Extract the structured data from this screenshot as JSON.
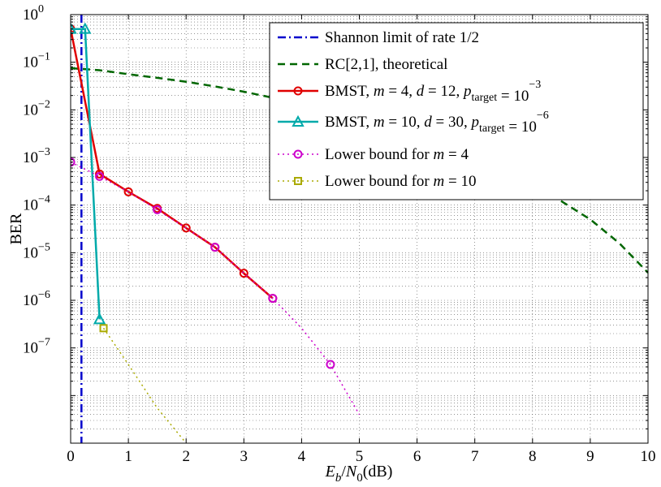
{
  "chart_data": {
    "type": "line",
    "title": "",
    "xlabel": "",
    "ylabel": "BER",
    "xlim": [
      0,
      10
    ],
    "ylim_log10": [
      -9,
      0
    ],
    "y_scale": "log",
    "grid": true,
    "legend_placement": "top-right",
    "x_ticks": [
      "0",
      "1",
      "2",
      "3",
      "4",
      "5",
      "6",
      "7",
      "8",
      "9",
      "10"
    ],
    "y_ticks": [
      {
        "base": "10",
        "exp": "0"
      },
      {
        "base": "10",
        "exp": "−1"
      },
      {
        "base": "10",
        "exp": "−2"
      },
      {
        "base": "10",
        "exp": "−3"
      },
      {
        "base": "10",
        "exp": "−4"
      },
      {
        "base": "10",
        "exp": "−5"
      },
      {
        "base": "10",
        "exp": "−6"
      },
      {
        "base": "10",
        "exp": "−7"
      }
    ],
    "xlabel_parts": {
      "E": "E",
      "b": "b",
      "slash": "/",
      "N": "N",
      "zero": "0",
      "unit": "(dB)"
    },
    "series": [
      {
        "key": "shannon",
        "color": "#0000cc",
        "dash": "10,4,2,4",
        "width": 2.5,
        "marker": "none",
        "legend": [
          {
            "t": "Shannon limit of rate 1/2"
          }
        ],
        "x": [
          0.187,
          0.187
        ],
        "y": [
          1,
          1e-09
        ]
      },
      {
        "key": "rc",
        "color": "#006600",
        "dash": "9,6",
        "width": 2.5,
        "marker": "none",
        "legend": [
          {
            "t": "RC[2,1], theoretical"
          }
        ],
        "x": [
          0,
          0.5,
          1,
          1.5,
          2,
          2.5,
          3,
          3.5,
          4,
          4.5,
          5,
          5.5,
          6,
          6.5,
          7,
          7.5,
          8,
          8.5,
          9,
          9.5,
          10
        ],
        "y": [
          0.075,
          0.068,
          0.056,
          0.047,
          0.039,
          0.031,
          0.024,
          0.018,
          0.0125,
          0.0082,
          0.0056,
          0.0035,
          0.0023,
          0.0013,
          0.00085,
          0.00049,
          0.00026,
          0.00012,
          5e-05,
          1.6e-05,
          3.8e-06
        ]
      },
      {
        "key": "bmst4",
        "color": "#e00000",
        "dash": "",
        "width": 2.5,
        "marker": "circle",
        "legend": [
          {
            "t": "BMST,  "
          },
          {
            "t": "m",
            "i": true
          },
          {
            "t": " = 4,  "
          },
          {
            "t": "d",
            "i": true
          },
          {
            "t": " = 12,  "
          },
          {
            "t": "p",
            "i": true
          },
          {
            "t": "target",
            "sub": true
          },
          {
            "t": " = 10"
          },
          {
            "t": "−3",
            "sup": true
          }
        ],
        "x": [
          0,
          0.5,
          1,
          1.5,
          2,
          2.5,
          3,
          3.5
        ],
        "y": [
          0.5,
          0.00045,
          0.00019,
          8.5e-05,
          3.3e-05,
          1.3e-05,
          3.7e-06,
          1.1e-06
        ]
      },
      {
        "key": "bmst10",
        "color": "#00aaaa",
        "dash": "",
        "width": 2.5,
        "marker": "triangle",
        "legend": [
          {
            "t": "BMST,  "
          },
          {
            "t": "m",
            "i": true
          },
          {
            "t": " = 10,  "
          },
          {
            "t": "d",
            "i": true
          },
          {
            "t": " = 30,  "
          },
          {
            "t": "p",
            "i": true
          },
          {
            "t": "target",
            "sub": true
          },
          {
            "t": " = 10"
          },
          {
            "t": "−6",
            "sup": true
          }
        ],
        "x": [
          0,
          0.25,
          0.5
        ],
        "y": [
          0.5,
          0.5,
          4e-07
        ]
      },
      {
        "key": "lb4",
        "color": "#cc00cc",
        "dash": "2,4",
        "width": 1.5,
        "marker": "circle-open",
        "marker_at": [
          0,
          1,
          3,
          5,
          7,
          9
        ],
        "legend": [
          {
            "t": "Lower bound for  "
          },
          {
            "t": "m",
            "i": true
          },
          {
            "t": " = 4"
          }
        ],
        "x": [
          0,
          0.5,
          1,
          1.5,
          2,
          2.5,
          3,
          3.5,
          4,
          4.5,
          5
        ],
        "y": [
          0.0008,
          0.0004,
          0.00019,
          8e-05,
          3.3e-05,
          1.3e-05,
          3.7e-06,
          1.1e-06,
          2.6e-07,
          4.5e-08,
          4e-09
        ]
      },
      {
        "key": "lb10",
        "color": "#aaaa00",
        "dash": "2,4",
        "width": 1.5,
        "marker": "square",
        "marker_at": [
          0
        ],
        "legend": [
          {
            "t": "Lower bound for  "
          },
          {
            "t": "m",
            "i": true
          },
          {
            "t": " = 10"
          }
        ],
        "x": [
          0.57,
          1.0,
          1.5,
          2.0
        ],
        "y": [
          2.6e-07,
          4.5e-08,
          5.5e-09,
          1e-09
        ]
      }
    ]
  }
}
